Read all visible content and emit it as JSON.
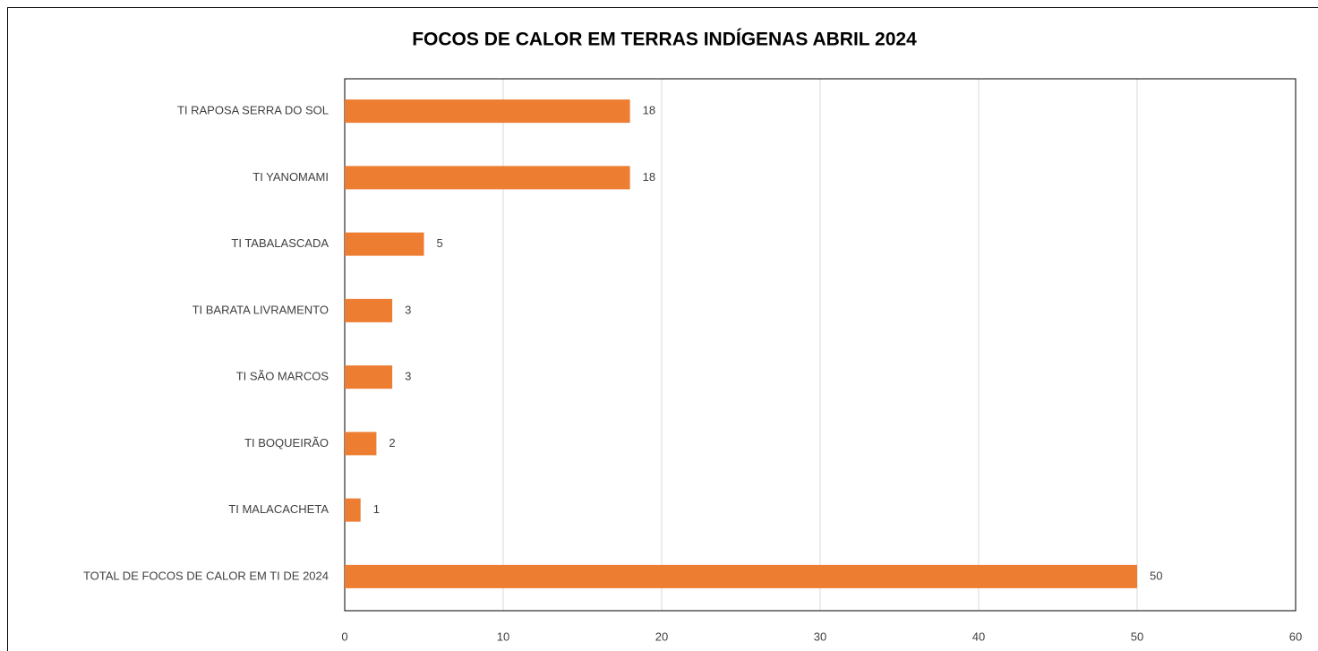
{
  "chart_data": {
    "type": "bar",
    "orientation": "horizontal",
    "title": "FOCOS DE CALOR EM TERRAS INDÍGENAS ABRIL 2024",
    "categories": [
      "TI RAPOSA SERRA DO SOL",
      "TI YANOMAMI",
      "TI TABALASCADA",
      "TI BARATA LIVRAMENTO",
      "TI SÃO MARCOS",
      "TI BOQUEIRÃO",
      "TI MALACACHETA",
      "TOTAL DE FOCOS DE CALOR EM TI DE 2024"
    ],
    "values": [
      18,
      18,
      5,
      3,
      3,
      2,
      1,
      50
    ],
    "color": "#ed7d31",
    "xlim": [
      0,
      60
    ],
    "xticks": [
      0,
      10,
      20,
      30,
      40,
      50,
      60
    ],
    "grid": true
  }
}
